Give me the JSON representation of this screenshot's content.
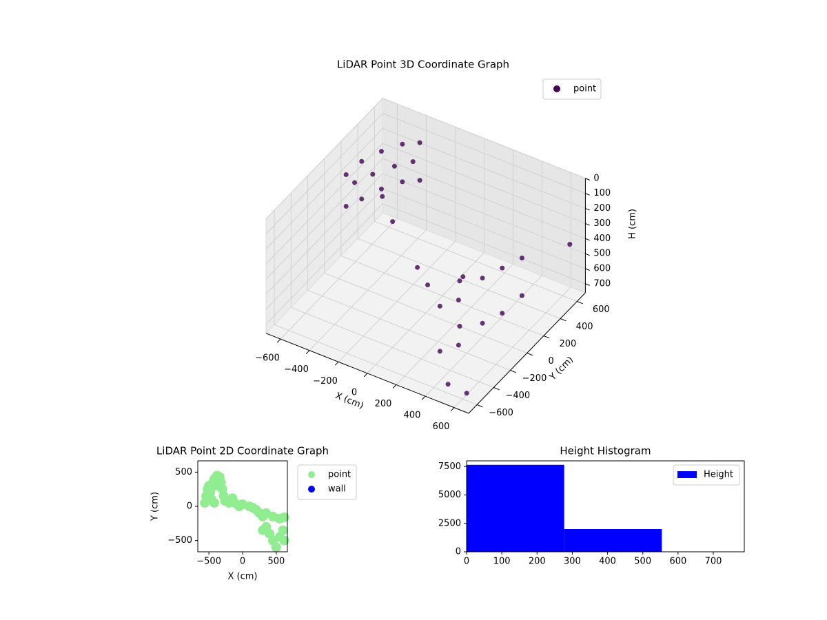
{
  "chart_data": [
    {
      "type": "scatter3d",
      "title": "LiDAR Point 3D Coordinate Graph",
      "xlabel": "X (cm)",
      "ylabel": "Y (cm)",
      "zlabel": "H (cm)",
      "xlim": [
        -700,
        700
      ],
      "ylim": [
        -700,
        700
      ],
      "zlim": [
        0,
        760
      ],
      "zinverted": true,
      "grid": true,
      "legend": "upper right",
      "xticks": [
        {
          "value": -600,
          "label": "−600"
        },
        {
          "value": -400,
          "label": "−400"
        },
        {
          "value": -200,
          "label": "−200"
        },
        0,
        200,
        400,
        600
      ],
      "yticks": [
        {
          "value": -600,
          "label": "−600"
        },
        {
          "value": -400,
          "label": "−400"
        },
        {
          "value": -200,
          "label": "−200"
        },
        0,
        200,
        400,
        600
      ],
      "zticks": [
        0,
        100,
        200,
        300,
        400,
        500,
        600,
        700
      ],
      "series": [
        {
          "name": "point",
          "color": "#440154",
          "x": [
            -550,
            -550,
            -500,
            -500,
            -450,
            -450,
            -380,
            -380,
            -300,
            -300,
            -520,
            -470,
            -400,
            -330,
            -300,
            -200,
            0,
            100,
            350,
            350,
            450,
            450,
            500,
            500,
            550,
            550,
            300,
            300,
            400,
            400,
            500,
            600,
            650,
            200
          ],
          "y": [
            0,
            0,
            100,
            100,
            250,
            250,
            380,
            380,
            450,
            450,
            50,
            180,
            320,
            420,
            0,
            -50,
            -100,
            -150,
            -200,
            -200,
            -100,
            -100,
            50,
            50,
            200,
            200,
            -350,
            -350,
            -300,
            -300,
            -600,
            -550,
            600,
            100
          ],
          "z": [
            50,
            260,
            0,
            250,
            0,
            250,
            0,
            250,
            0,
            250,
            120,
            120,
            120,
            120,
            100,
            200,
            400,
            450,
            300,
            600,
            300,
            600,
            300,
            600,
            300,
            550,
            400,
            700,
            350,
            650,
            700,
            750,
            400,
            500
          ]
        }
      ]
    },
    {
      "type": "scatter",
      "title": "LiDAR Point 2D Coordinate Graph",
      "xlabel": "X (cm)",
      "ylabel": "Y (cm)",
      "xlim": [
        -665,
        665
      ],
      "ylim": [
        -665,
        665
      ],
      "legend": "outside right",
      "xticks": [
        {
          "value": -500,
          "label": "−500"
        },
        0,
        500
      ],
      "yticks": [
        {
          "value": -500,
          "label": "−500"
        },
        0,
        500
      ],
      "series": [
        {
          "name": "point",
          "color": "#90ee90",
          "x": [
            -560,
            -540,
            -520,
            -500,
            -480,
            -460,
            -440,
            -420,
            -380,
            -340,
            -320,
            -300,
            -280,
            -260,
            -400,
            -420,
            -200,
            -100,
            0,
            -150,
            -50,
            100,
            150,
            200,
            250,
            300,
            350,
            450,
            550,
            620,
            350,
            400,
            450,
            500,
            550,
            600,
            620,
            300
          ],
          "y": [
            50,
            150,
            250,
            300,
            200,
            100,
            350,
            400,
            450,
            430,
            350,
            250,
            150,
            80,
            300,
            50,
            50,
            40,
            30,
            120,
            0,
            0,
            -20,
            -50,
            -100,
            -150,
            -100,
            -150,
            -180,
            -160,
            -300,
            -400,
            -500,
            -600,
            -450,
            -350,
            -500,
            -350
          ]
        },
        {
          "name": "wall",
          "color": "#0000ff",
          "x": [],
          "y": []
        }
      ]
    },
    {
      "type": "histogram",
      "title": "Height Histogram",
      "xlim": [
        0,
        788
      ],
      "ylim": [
        0,
        8000
      ],
      "xticks": [
        0,
        100,
        200,
        300,
        400,
        500,
        600,
        700
      ],
      "yticks": [
        0,
        2500,
        5000,
        7500
      ],
      "legend": "upper right",
      "bins": [
        0,
        277,
        554,
        788
      ],
      "series": [
        {
          "name": "Height",
          "color": "#0000ff",
          "values": [
            7650,
            2000,
            30
          ]
        }
      ]
    }
  ]
}
